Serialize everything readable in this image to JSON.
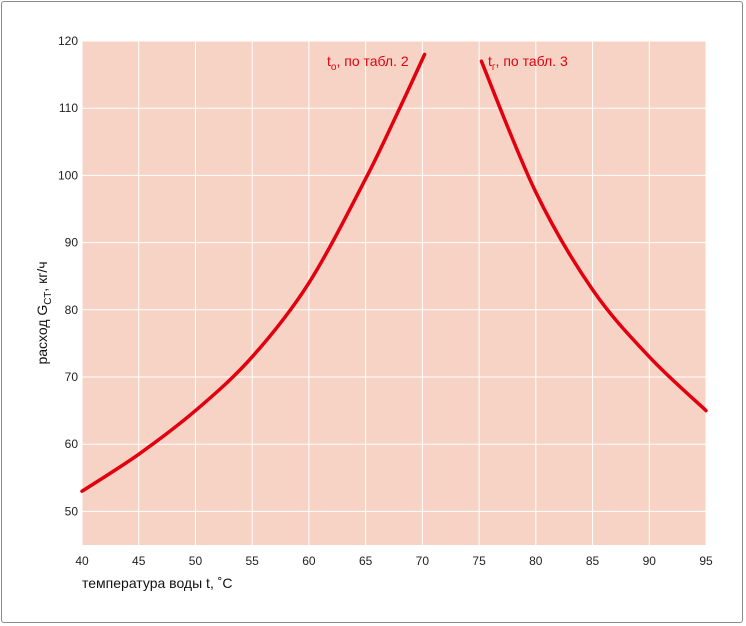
{
  "chart_data": {
    "type": "line",
    "title": "",
    "xlabel": "температура воды t, ˚C",
    "ylabel": {
      "prefix": "расход G",
      "sub": "СТ",
      "suffix": ", кг/ч"
    },
    "xlim": [
      40,
      95
    ],
    "ylim": [
      45,
      120
    ],
    "xticks": [
      40,
      45,
      50,
      55,
      60,
      65,
      70,
      75,
      80,
      85,
      90,
      95
    ],
    "yticks": [
      50,
      60,
      70,
      80,
      90,
      100,
      110,
      120
    ],
    "grid": true,
    "colors": {
      "plot_background": "#f7d3c6",
      "grid": "#ffffff",
      "line": "#e2000f"
    },
    "series": [
      {
        "name": "",
        "label": {
          "main": "t",
          "sub": "о",
          "rest": ", по табл. 2"
        },
        "x": [
          40,
          45,
          50,
          55,
          60,
          65,
          68,
          70.2
        ],
        "y": [
          53,
          58.5,
          65,
          73,
          84,
          99.5,
          110,
          118
        ]
      },
      {
        "name": "",
        "label": {
          "main": "t",
          "sub": "г",
          "rest": ", по табл. 3"
        },
        "x": [
          75.2,
          80,
          85,
          90,
          95
        ],
        "y": [
          117,
          97.5,
          83,
          73,
          65
        ]
      }
    ]
  }
}
